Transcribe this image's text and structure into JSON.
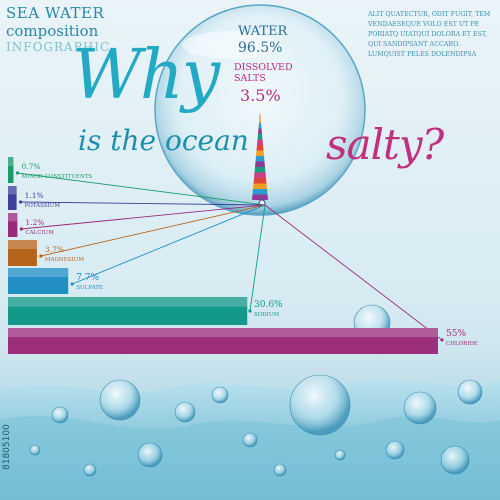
{
  "header": {
    "line1": "SEA WATER",
    "line2": "composition",
    "line3": "INFOGRAPHIC"
  },
  "headline": {
    "why": "Why",
    "is_the_ocean": "is the ocean",
    "salty": "salty?"
  },
  "lorem": "ALIT QUATECTUR, ODIT FUGIT, TEM VENDAESEQUE VOLO EST UT PE PORIATQ UIATQUI DOLORA ET EST, QUI SANDIPSANT ACCABO. LUMQUIST PELES DOLENDIPSA",
  "bubble": {
    "water_label": "WATER",
    "water_value": "96.5%",
    "salts_label": "DISSOLVED SALTS",
    "salts_value": "3.5%"
  },
  "watermark": "81805100",
  "chart_data": {
    "type": "bar",
    "categories": [
      "MINOR CONSTITUENTS",
      "POTASSIUM",
      "CALCIUM",
      "MAGNESIUM",
      "SULFATE",
      "SODIUM",
      "CHLORIDE"
    ],
    "values": [
      0.7,
      1.1,
      1.2,
      3.7,
      7.7,
      30.6,
      55
    ],
    "value_labels": [
      "0.7%",
      "1.1%",
      "1.2%",
      "3.7%",
      "7.7%",
      "30.6%",
      "55%"
    ],
    "colors": [
      "#1a9c68",
      "#3f3f9c",
      "#9a2a7c",
      "#b6641c",
      "#1f8fc4",
      "#12998a",
      "#9c2e7c"
    ],
    "orientation": "horizontal",
    "xlim": [
      0,
      55
    ]
  }
}
